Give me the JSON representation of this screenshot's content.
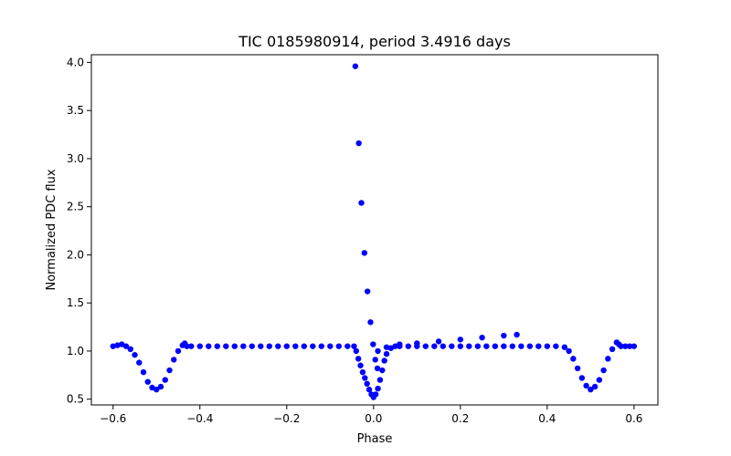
{
  "chart_data": {
    "type": "scatter",
    "title": "TIC 0185980914, period 3.4916 days",
    "xlabel": "Phase",
    "ylabel": "Normalized PDC flux",
    "xlim": [
      -0.65,
      0.655
    ],
    "ylim": [
      0.44,
      4.08
    ],
    "xticks": [
      -0.6,
      -0.4,
      -0.2,
      0.0,
      0.2,
      0.4,
      0.6
    ],
    "xtick_labels": [
      "−0.6",
      "−0.4",
      "−0.2",
      "0.0",
      "0.2",
      "0.4",
      "0.6"
    ],
    "yticks": [
      0.5,
      1.0,
      1.5,
      2.0,
      2.5,
      3.0,
      3.5,
      4.0
    ],
    "ytick_labels": [
      "0.5",
      "1.0",
      "1.5",
      "2.0",
      "2.5",
      "3.0",
      "3.5",
      "4.0"
    ],
    "grid": false,
    "legend": "none",
    "marker_color": "#0000ff",
    "series": [
      {
        "description": "phase-folded light curve",
        "points": [
          [
            -0.6,
            1.05
          ],
          [
            -0.59,
            1.06
          ],
          [
            -0.58,
            1.07
          ],
          [
            -0.57,
            1.05
          ],
          [
            -0.56,
            1.02
          ],
          [
            -0.55,
            0.96
          ],
          [
            -0.54,
            0.88
          ],
          [
            -0.53,
            0.78
          ],
          [
            -0.52,
            0.68
          ],
          [
            -0.51,
            0.62
          ],
          [
            -0.5,
            0.6
          ],
          [
            -0.49,
            0.63
          ],
          [
            -0.48,
            0.7
          ],
          [
            -0.47,
            0.8
          ],
          [
            -0.46,
            0.91
          ],
          [
            -0.45,
            1.0
          ],
          [
            -0.44,
            1.06
          ],
          [
            -0.435,
            1.08
          ],
          [
            -0.43,
            1.05
          ],
          [
            -0.42,
            1.05
          ],
          [
            -0.4,
            1.05
          ],
          [
            -0.38,
            1.05
          ],
          [
            -0.36,
            1.05
          ],
          [
            -0.34,
            1.05
          ],
          [
            -0.32,
            1.05
          ],
          [
            -0.3,
            1.05
          ],
          [
            -0.28,
            1.05
          ],
          [
            -0.26,
            1.05
          ],
          [
            -0.24,
            1.05
          ],
          [
            -0.22,
            1.05
          ],
          [
            -0.2,
            1.05
          ],
          [
            -0.18,
            1.05
          ],
          [
            -0.16,
            1.05
          ],
          [
            -0.14,
            1.05
          ],
          [
            -0.12,
            1.05
          ],
          [
            -0.1,
            1.05
          ],
          [
            -0.08,
            1.05
          ],
          [
            -0.06,
            1.05
          ],
          [
            -0.045,
            1.05
          ],
          [
            -0.04,
            1.0
          ],
          [
            -0.035,
            0.92
          ],
          [
            -0.03,
            0.85
          ],
          [
            -0.025,
            0.78
          ],
          [
            -0.02,
            0.72
          ],
          [
            -0.015,
            0.66
          ],
          [
            -0.01,
            0.6
          ],
          [
            -0.005,
            0.55
          ],
          [
            0.0,
            0.52
          ],
          [
            0.005,
            0.55
          ],
          [
            0.01,
            0.61
          ],
          [
            0.015,
            0.7
          ],
          [
            0.02,
            0.8
          ],
          [
            0.025,
            0.9
          ],
          [
            0.03,
            0.97
          ],
          [
            0.04,
            1.03
          ],
          [
            0.05,
            1.05
          ],
          [
            0.06,
            1.05
          ],
          [
            0.08,
            1.05
          ],
          [
            0.1,
            1.05
          ],
          [
            0.12,
            1.05
          ],
          [
            0.14,
            1.05
          ],
          [
            0.16,
            1.05
          ],
          [
            0.18,
            1.05
          ],
          [
            0.2,
            1.05
          ],
          [
            0.22,
            1.05
          ],
          [
            0.24,
            1.05
          ],
          [
            0.26,
            1.05
          ],
          [
            0.28,
            1.05
          ],
          [
            0.3,
            1.05
          ],
          [
            0.32,
            1.05
          ],
          [
            0.34,
            1.05
          ],
          [
            0.36,
            1.05
          ],
          [
            0.38,
            1.05
          ],
          [
            0.4,
            1.05
          ],
          [
            0.42,
            1.05
          ],
          [
            0.44,
            1.04
          ],
          [
            0.45,
            1.0
          ],
          [
            0.46,
            0.92
          ],
          [
            0.47,
            0.82
          ],
          [
            0.48,
            0.72
          ],
          [
            0.49,
            0.64
          ],
          [
            0.5,
            0.6
          ],
          [
            0.51,
            0.63
          ],
          [
            0.52,
            0.7
          ],
          [
            0.53,
            0.8
          ],
          [
            0.54,
            0.92
          ],
          [
            0.55,
            1.02
          ],
          [
            0.56,
            1.09
          ],
          [
            0.565,
            1.07
          ],
          [
            0.57,
            1.05
          ],
          [
            0.58,
            1.05
          ],
          [
            0.59,
            1.05
          ],
          [
            0.6,
            1.05
          ],
          [
            0.01,
            1.0
          ],
          [
            0.03,
            1.04
          ],
          [
            0.06,
            1.07
          ],
          [
            0.1,
            1.08
          ],
          [
            0.15,
            1.1
          ],
          [
            0.2,
            1.12
          ],
          [
            0.25,
            1.14
          ],
          [
            0.3,
            1.16
          ],
          [
            0.33,
            1.17
          ],
          [
            -0.042,
            3.96
          ],
          [
            -0.034,
            3.16
          ],
          [
            -0.028,
            2.54
          ],
          [
            -0.021,
            2.02
          ],
          [
            -0.014,
            1.62
          ],
          [
            -0.007,
            1.3
          ],
          [
            -0.001,
            1.07
          ],
          [
            0.004,
            0.91
          ],
          [
            0.009,
            0.82
          ]
        ]
      }
    ]
  }
}
